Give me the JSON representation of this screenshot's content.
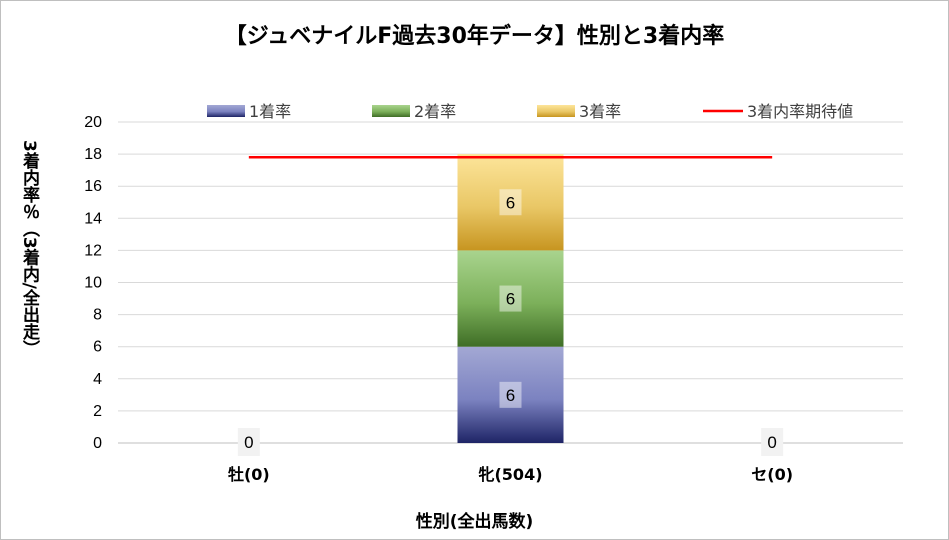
{
  "chart_data": {
    "type": "bar",
    "stacked": true,
    "title": "【ジュベナイルF過去30年データ】性別と3着内率",
    "xlabel": "性別(全出馬数)",
    "ylabel": "3着内率％（3着内/全出走）",
    "ylim": [
      0,
      20
    ],
    "yticks": [
      0,
      2,
      4,
      6,
      8,
      10,
      12,
      14,
      16,
      18,
      20
    ],
    "categories": [
      "牡(0)",
      "牝(504)",
      "セ(0)"
    ],
    "series": [
      {
        "name": "1着率",
        "values": [
          0,
          6,
          0
        ],
        "color": "#2e3582"
      },
      {
        "name": "2着率",
        "values": [
          0,
          6,
          0
        ],
        "color": "#5f9140"
      },
      {
        "name": "3着率",
        "values": [
          0,
          6,
          0
        ],
        "color": "#d2a73a"
      }
    ],
    "total_labels": [
      "0",
      null,
      "0"
    ],
    "reference_line": {
      "name": "3着内率期待値",
      "value": 17.8,
      "color": "#ff0000"
    },
    "grid": true,
    "legend_position": "top"
  }
}
